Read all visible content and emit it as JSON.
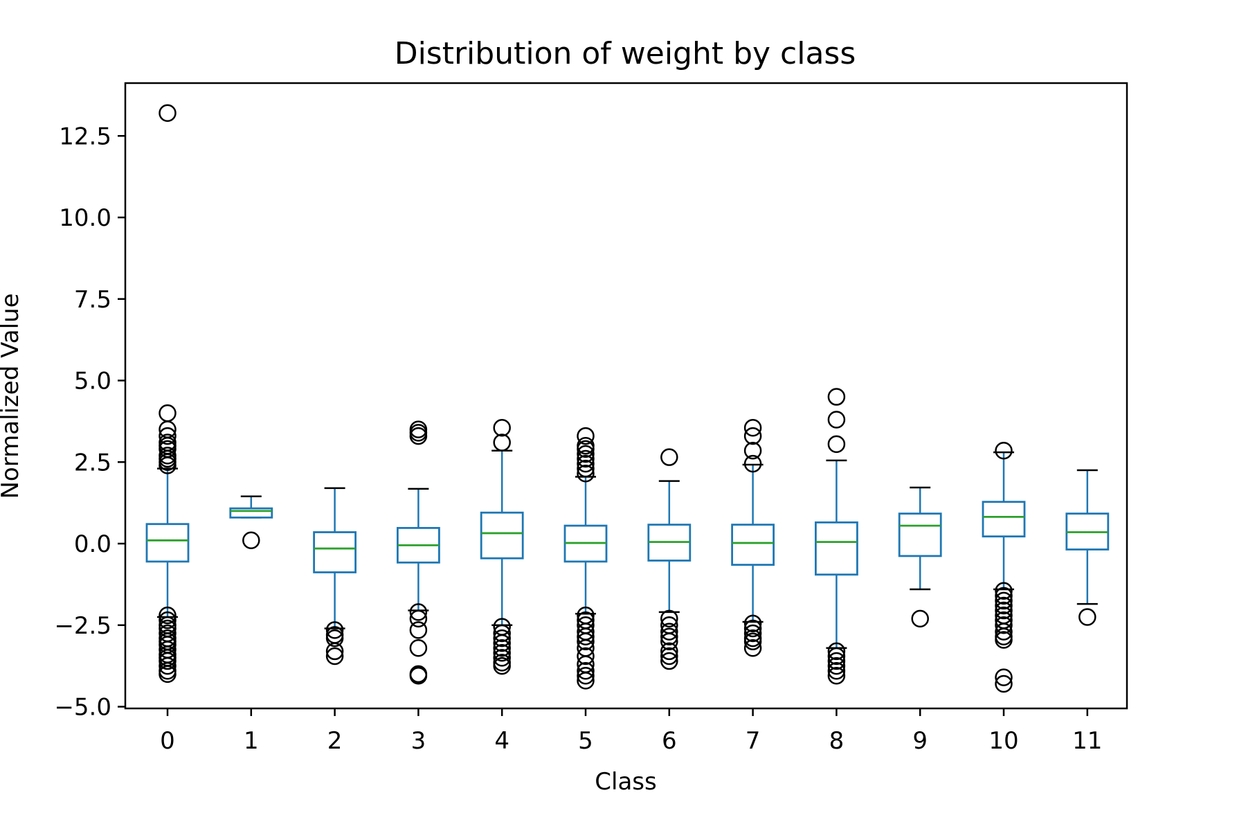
{
  "chart_data": {
    "type": "box",
    "title": "Distribution of weight by class",
    "xlabel": "Class",
    "ylabel": "Normalized Value",
    "ylim": [
      -5.1,
      14.0
    ],
    "yticks": [
      -5.0,
      -2.5,
      0.0,
      2.5,
      5.0,
      7.5,
      10.0,
      12.5
    ],
    "ytick_labels": [
      "−5.0",
      "−2.5",
      "0.0",
      "2.5",
      "5.0",
      "7.5",
      "10.0",
      "12.5"
    ],
    "grid": false,
    "colors": {
      "box": "#1f77b4",
      "median": "#2ca02c",
      "whisker_cap": "#000000",
      "outlier": "#000000"
    },
    "categories": [
      "0",
      "1",
      "2",
      "3",
      "4",
      "5",
      "6",
      "7",
      "8",
      "9",
      "10",
      "11"
    ],
    "boxes": [
      {
        "class": "0",
        "whislo": -2.25,
        "q1": -0.55,
        "median": 0.1,
        "q3": 0.6,
        "whishi": 2.3,
        "fliers": [
          13.2,
          4.0,
          3.5,
          3.3,
          3.1,
          3.0,
          2.9,
          2.7,
          2.6,
          2.5,
          2.4,
          -2.2,
          -2.35,
          -2.5,
          -2.6,
          -2.75,
          -2.9,
          -3.0,
          -3.1,
          -3.25,
          -3.4,
          -3.5,
          -3.6,
          -3.75,
          -3.9,
          -4.0
        ]
      },
      {
        "class": "1",
        "whislo": 0.8,
        "q1": 0.8,
        "median": 1.0,
        "q3": 1.08,
        "whishi": 1.45,
        "fliers": [
          0.1
        ]
      },
      {
        "class": "2",
        "whislo": -2.6,
        "q1": -0.88,
        "median": -0.15,
        "q3": 0.35,
        "whishi": 1.7,
        "fliers": [
          -2.65,
          -2.8,
          -2.9,
          -3.3,
          -3.45
        ]
      },
      {
        "class": "3",
        "whislo": -2.05,
        "q1": -0.58,
        "median": -0.05,
        "q3": 0.48,
        "whishi": 1.68,
        "fliers": [
          3.5,
          3.4,
          3.3,
          -2.1,
          -2.3,
          -2.65,
          -3.2,
          -4.0,
          -4.05
        ]
      },
      {
        "class": "4",
        "whislo": -2.5,
        "q1": -0.45,
        "median": 0.32,
        "q3": 0.95,
        "whishi": 2.85,
        "fliers": [
          3.55,
          3.1,
          -2.55,
          -2.75,
          -2.9,
          -3.05,
          -3.2,
          -3.35,
          -3.5,
          -3.65,
          -3.75
        ]
      },
      {
        "class": "5",
        "whislo": -2.15,
        "q1": -0.55,
        "median": 0.02,
        "q3": 0.55,
        "whishi": 2.05,
        "fliers": [
          3.3,
          3.0,
          2.9,
          2.75,
          2.6,
          2.45,
          2.3,
          2.15,
          -2.2,
          -2.35,
          -2.5,
          -2.7,
          -2.85,
          -3.0,
          -3.2,
          -3.45,
          -3.7,
          -3.9,
          -4.05,
          -4.2
        ]
      },
      {
        "class": "6",
        "whislo": -2.1,
        "q1": -0.52,
        "median": 0.05,
        "q3": 0.58,
        "whishi": 1.92,
        "fliers": [
          2.65,
          -2.3,
          -2.5,
          -2.7,
          -2.85,
          -3.0,
          -3.3,
          -3.45,
          -3.6
        ]
      },
      {
        "class": "7",
        "whislo": -2.4,
        "q1": -0.65,
        "median": 0.02,
        "q3": 0.58,
        "whishi": 2.42,
        "fliers": [
          3.55,
          3.3,
          2.85,
          2.45,
          -2.45,
          -2.6,
          -2.75,
          -2.9,
          -3.0,
          -3.2
        ]
      },
      {
        "class": "8",
        "whislo": -3.2,
        "q1": -0.95,
        "median": 0.05,
        "q3": 0.65,
        "whishi": 2.55,
        "fliers": [
          4.5,
          3.8,
          3.05,
          -3.3,
          -3.45,
          -3.6,
          -3.75,
          -3.9,
          -4.05
        ]
      },
      {
        "class": "9",
        "whislo": -1.4,
        "q1": -0.38,
        "median": 0.55,
        "q3": 0.92,
        "whishi": 1.72,
        "fliers": [
          -2.3
        ]
      },
      {
        "class": "10",
        "whislo": -1.4,
        "q1": 0.22,
        "median": 0.82,
        "q3": 1.28,
        "whishi": 2.8,
        "fliers": [
          2.85,
          -1.45,
          -1.6,
          -1.75,
          -1.9,
          -2.05,
          -2.2,
          -2.35,
          -2.5,
          -2.7,
          -2.85,
          -2.95,
          -4.1,
          -4.3
        ]
      },
      {
        "class": "11",
        "whislo": -1.85,
        "q1": -0.18,
        "median": 0.35,
        "q3": 0.92,
        "whishi": 2.25,
        "fliers": [
          -2.25
        ]
      }
    ]
  }
}
